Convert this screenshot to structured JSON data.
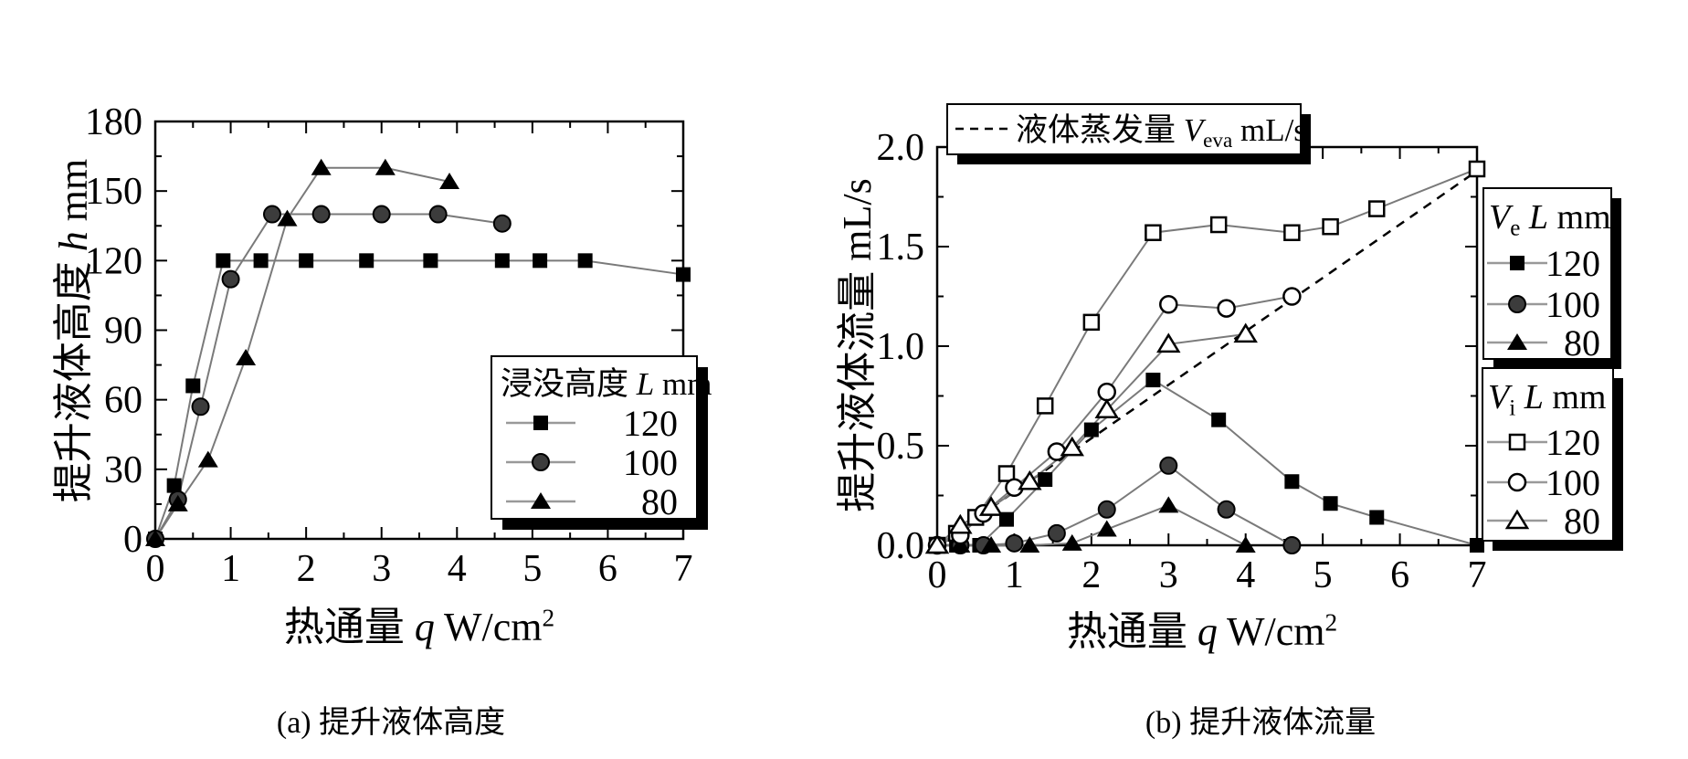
{
  "figure": {
    "background": "#ffffff"
  },
  "captions": {
    "a": "(a) 提升液体高度",
    "b": "(b) 提升液体流量"
  },
  "colors": {
    "axis": "#000000",
    "series_line": "#7a7a7a",
    "legend_line": "#999999",
    "dashed_line": "#000000",
    "marker_black": "#000000",
    "filled_circle_fill": "#3c3c3c",
    "marker_open_fill": "#ffffff"
  },
  "chart_data": [
    {
      "id": "a",
      "type": "line",
      "caption": "(a) 提升液体高度",
      "xlabel": {
        "prefix": "热通量 ",
        "var": "q",
        "unit": " W/cm",
        "sup": "2"
      },
      "ylabel": {
        "prefix": "提升液体高度 ",
        "var": "h",
        "unit": " mm"
      },
      "x_axis": {
        "min": 0,
        "max": 7,
        "major": 1,
        "minor": 0.5,
        "tick_labels": [
          "0",
          "1",
          "2",
          "3",
          "4",
          "5",
          "6",
          "7"
        ]
      },
      "y_axis": {
        "min": 0,
        "max": 180,
        "major": 30,
        "minor": 15,
        "tick_labels": [
          "0",
          "30",
          "60",
          "90",
          "120",
          "150",
          "180"
        ]
      },
      "legend": {
        "header_parts": [
          {
            "t": "浸没高度 "
          },
          {
            "t": "L",
            "i": true
          },
          {
            "t": " mm"
          }
        ],
        "position": "bottom-right"
      },
      "series": [
        {
          "name": "L=120",
          "legend_label": "120",
          "marker": "square-filled",
          "points": [
            [
              0,
              0
            ],
            [
              0.25,
              23
            ],
            [
              0.5,
              66
            ],
            [
              0.9,
              120
            ],
            [
              1.4,
              120
            ],
            [
              2.0,
              120
            ],
            [
              2.8,
              120
            ],
            [
              3.65,
              120
            ],
            [
              4.6,
              120
            ],
            [
              5.1,
              120
            ],
            [
              5.7,
              120
            ],
            [
              7.0,
              114
            ]
          ]
        },
        {
          "name": "L=100",
          "legend_label": "100",
          "marker": "circle-filled",
          "points": [
            [
              0,
              0
            ],
            [
              0.3,
              17
            ],
            [
              0.6,
              57
            ],
            [
              1.0,
              112
            ],
            [
              1.55,
              140
            ],
            [
              2.2,
              140
            ],
            [
              3.0,
              140
            ],
            [
              3.75,
              140
            ],
            [
              4.6,
              136
            ]
          ]
        },
        {
          "name": "L=80",
          "legend_label": "80",
          "marker": "triangle-filled",
          "points": [
            [
              0,
              0
            ],
            [
              0.3,
              15
            ],
            [
              0.7,
              34
            ],
            [
              1.2,
              78
            ],
            [
              1.75,
              138
            ],
            [
              2.2,
              160
            ],
            [
              3.05,
              160
            ],
            [
              3.9,
              154
            ]
          ]
        }
      ]
    },
    {
      "id": "b",
      "type": "line",
      "caption": "(b) 提升液体流量",
      "xlabel": {
        "prefix": "热通量 ",
        "var": "q",
        "unit": " W/cm",
        "sup": "2"
      },
      "ylabel": {
        "prefix": "提升液体流量 ",
        "var": "",
        "unit": " mL/s"
      },
      "x_axis": {
        "min": 0,
        "max": 7,
        "major": 1,
        "minor": 0.5,
        "tick_labels": [
          "0",
          "1",
          "2",
          "3",
          "4",
          "5",
          "6",
          "7"
        ]
      },
      "y_axis": {
        "min": 0,
        "max": 2,
        "major": 0.5,
        "minor": 0.25,
        "tick_labels": [
          "0.0",
          "0.5",
          "1.0",
          "1.5",
          "2.0"
        ]
      },
      "evaporation": {
        "name": "V_eva",
        "style": "dashed",
        "legend_parts": [
          {
            "t": "液体蒸发量 "
          },
          {
            "t": "V",
            "i": true
          },
          {
            "t": "eva",
            "sub": true
          },
          {
            "t": " mL/s"
          }
        ],
        "points": [
          [
            0,
            0
          ],
          [
            7,
            1.88
          ]
        ]
      },
      "legend_Ve": {
        "header_parts": [
          {
            "t": "V",
            "i": true
          },
          {
            "t": "e",
            "sub": true
          },
          {
            "t": "  "
          },
          {
            "t": "L",
            "i": true
          },
          {
            "t": " mm"
          }
        ]
      },
      "legend_Vi": {
        "header_parts": [
          {
            "t": "V",
            "i": true
          },
          {
            "t": "i",
            "sub": true
          },
          {
            "t": "  "
          },
          {
            "t": "L",
            "i": true
          },
          {
            "t": " mm"
          }
        ]
      },
      "series": [
        {
          "name": "Ve L=120",
          "group": "Ve",
          "legend_label": "120",
          "marker": "square-filled",
          "points": [
            [
              0,
              0
            ],
            [
              0.25,
              0
            ],
            [
              0.55,
              0
            ],
            [
              0.9,
              0.13
            ],
            [
              1.4,
              0.33
            ],
            [
              2.0,
              0.58
            ],
            [
              2.8,
              0.83
            ],
            [
              3.65,
              0.63
            ],
            [
              4.6,
              0.32
            ],
            [
              5.1,
              0.21
            ],
            [
              5.7,
              0.14
            ],
            [
              7.0,
              0
            ]
          ]
        },
        {
          "name": "Ve L=100",
          "group": "Ve",
          "legend_label": "100",
          "marker": "circle-filled",
          "points": [
            [
              0,
              0
            ],
            [
              0.3,
              0
            ],
            [
              0.6,
              0
            ],
            [
              1.0,
              0.01
            ],
            [
              1.55,
              0.06
            ],
            [
              2.2,
              0.18
            ],
            [
              3.0,
              0.4
            ],
            [
              3.75,
              0.18
            ],
            [
              4.6,
              0
            ]
          ]
        },
        {
          "name": "Ve L=80",
          "group": "Ve",
          "legend_label": "80",
          "marker": "triangle-filled",
          "points": [
            [
              0,
              0
            ],
            [
              0.3,
              0
            ],
            [
              0.7,
              0
            ],
            [
              1.2,
              0
            ],
            [
              1.75,
              0.01
            ],
            [
              2.2,
              0.08
            ],
            [
              3.0,
              0.2
            ],
            [
              4.0,
              0
            ]
          ]
        },
        {
          "name": "Vi L=120",
          "group": "Vi",
          "legend_label": "120",
          "marker": "square-open",
          "points": [
            [
              0,
              0
            ],
            [
              0.25,
              0.06
            ],
            [
              0.5,
              0.14
            ],
            [
              0.9,
              0.36
            ],
            [
              1.4,
              0.7
            ],
            [
              2.0,
              1.12
            ],
            [
              2.8,
              1.57
            ],
            [
              3.65,
              1.61
            ],
            [
              4.6,
              1.57
            ],
            [
              5.1,
              1.6
            ],
            [
              5.7,
              1.69
            ],
            [
              7.0,
              1.89
            ]
          ]
        },
        {
          "name": "Vi L=100",
          "group": "Vi",
          "legend_label": "100",
          "marker": "circle-open",
          "points": [
            [
              0,
              0
            ],
            [
              0.3,
              0.05
            ],
            [
              0.6,
              0.16
            ],
            [
              1.0,
              0.29
            ],
            [
              1.55,
              0.47
            ],
            [
              2.2,
              0.77
            ],
            [
              3.0,
              1.21
            ],
            [
              3.75,
              1.19
            ],
            [
              4.6,
              1.25
            ]
          ]
        },
        {
          "name": "Vi L=80",
          "group": "Vi",
          "legend_label": "80",
          "marker": "triangle-open",
          "points": [
            [
              0,
              0
            ],
            [
              0.3,
              0.1
            ],
            [
              0.7,
              0.19
            ],
            [
              1.2,
              0.32
            ],
            [
              1.75,
              0.49
            ],
            [
              2.2,
              0.68
            ],
            [
              3.0,
              1.01
            ],
            [
              4.0,
              1.06
            ]
          ]
        }
      ]
    }
  ]
}
